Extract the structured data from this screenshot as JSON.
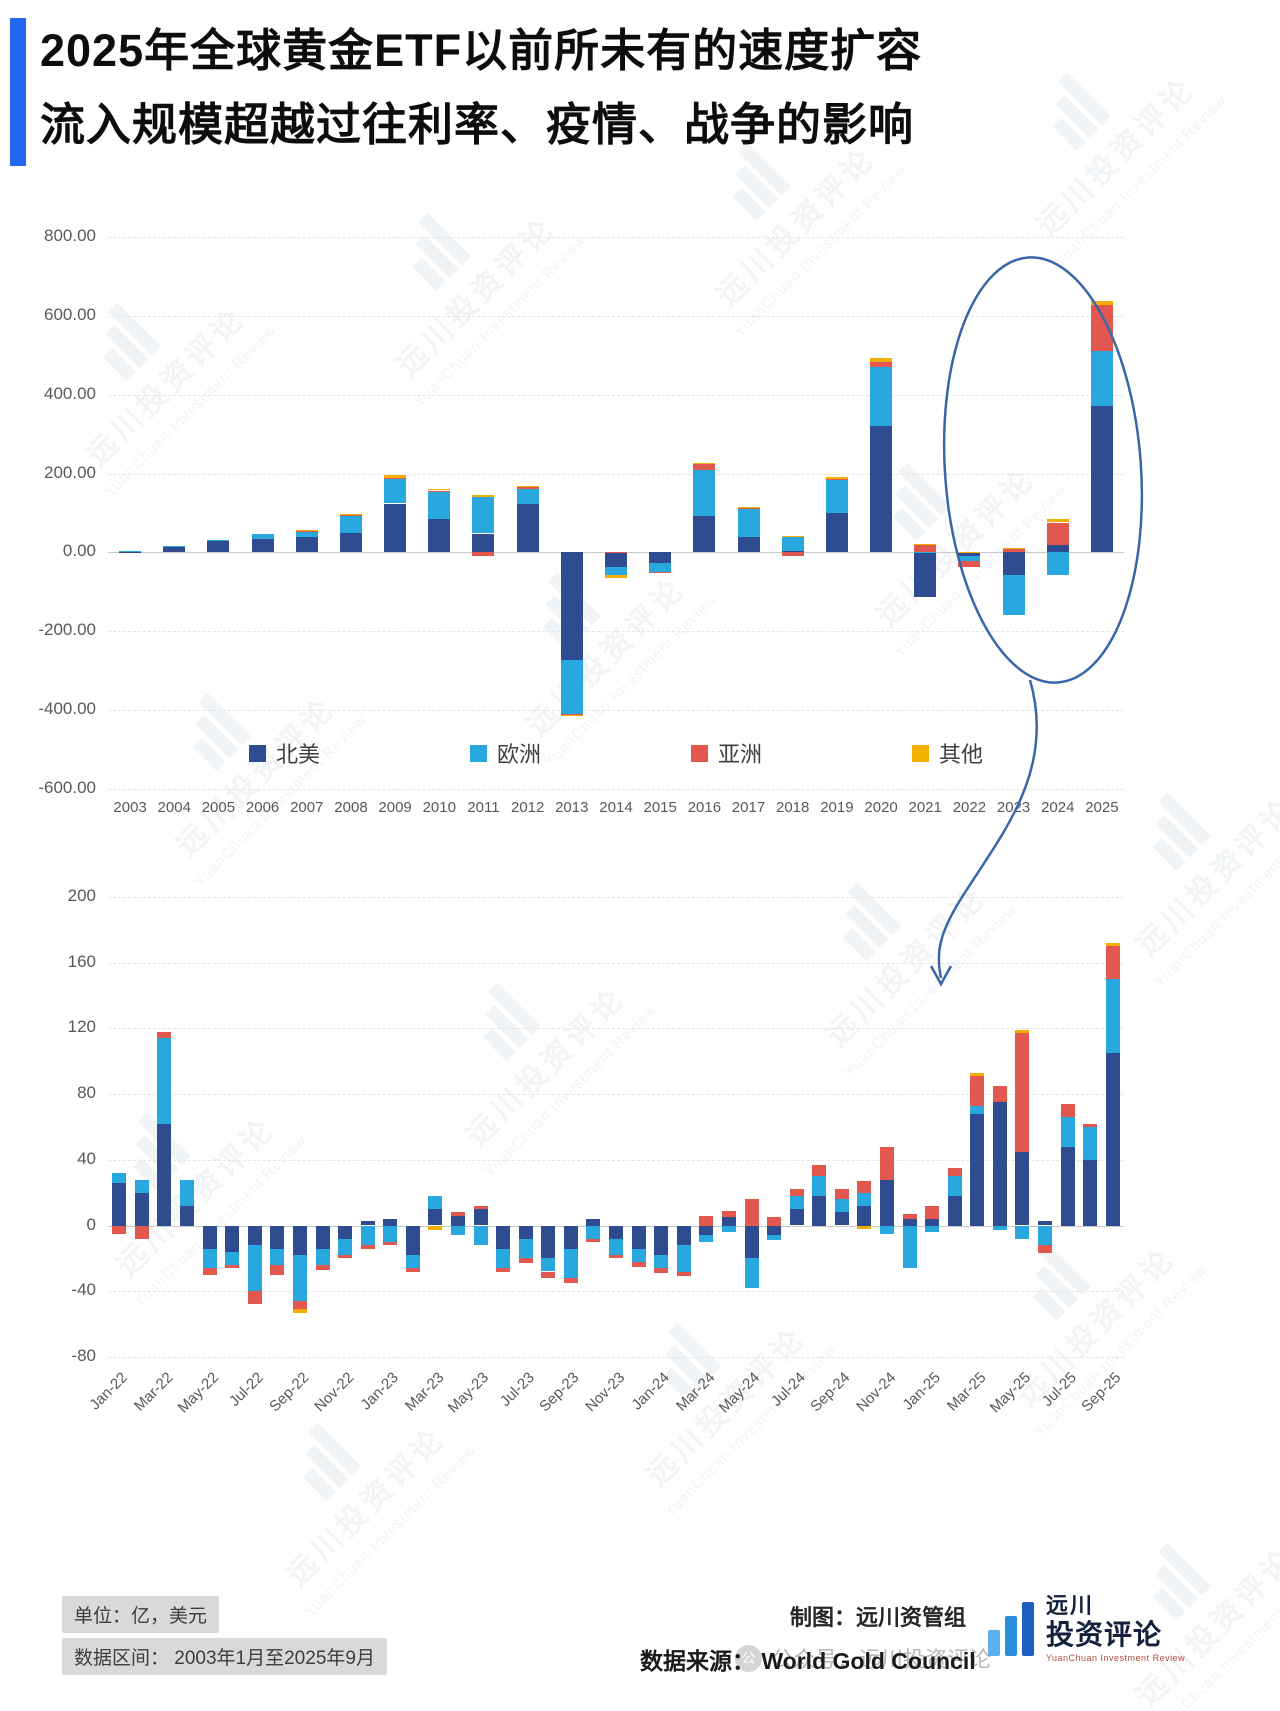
{
  "title": {
    "line1": "2025年全球黄金ETF以前所未有的速度扩容",
    "line2": "流入规模超越过往利率、疫情、战争的影响"
  },
  "legend": [
    {
      "label": "北美",
      "color": "#2E4C8F"
    },
    {
      "label": "欧洲",
      "color": "#29A8E0"
    },
    {
      "label": "亚洲",
      "color": "#E2574E"
    },
    {
      "label": "其他",
      "color": "#F2AF00"
    }
  ],
  "watermark": {
    "cn": "远川投资评论",
    "en": "YuanChuan Investment Review"
  },
  "footer": {
    "unit_label": "单位：亿，美元",
    "range_label": "数据区间： 2003年1月至2025年9月",
    "credit_label": "制图：远川资管组",
    "source_label": "数据来源： World Gold Council",
    "wechat_label": "公众号：远川投资评论",
    "wechat_icon_glyph": "公",
    "logo_cn1": "远川",
    "logo_cn2": "投资评论",
    "logo_en": "YuanChuan Investment Review"
  },
  "chart_data": [
    {
      "type": "bar",
      "stacked": true,
      "title": "",
      "xlabel": "",
      "ylabel": "",
      "ylim": [
        -600,
        800
      ],
      "yticks": [
        800,
        600,
        400,
        200,
        0,
        -200,
        -400,
        -600
      ],
      "ytick_decimals": true,
      "xtick_every": 1,
      "rotate_xticks": false,
      "bar_ratio": 0.5,
      "grid": true,
      "legend_position": "bottom-inside",
      "categories": [
        "2003",
        "2004",
        "2005",
        "2006",
        "2007",
        "2008",
        "2009",
        "2010",
        "2011",
        "2012",
        "2013",
        "2014",
        "2015",
        "2016",
        "2017",
        "2018",
        "2019",
        "2020",
        "2021",
        "2022",
        "2023",
        "2024",
        "2025"
      ],
      "series": [
        {
          "name": "北美",
          "values": [
            2,
            14,
            28,
            34,
            40,
            50,
            124,
            85,
            48,
            122,
            -272,
            -38,
            -26,
            92,
            38,
            3,
            100,
            320,
            -112,
            -10,
            -58,
            18,
            372
          ]
        },
        {
          "name": "欧洲",
          "values": [
            3,
            2,
            3,
            12,
            12,
            44,
            62,
            70,
            92,
            40,
            -138,
            -20,
            -24,
            118,
            72,
            38,
            84,
            150,
            2,
            -12,
            -102,
            -58,
            138
          ]
        },
        {
          "name": "亚洲",
          "values": [
            0,
            0,
            0,
            0,
            3,
            2,
            3,
            2,
            -8,
            3,
            -3,
            2,
            -2,
            15,
            2,
            -8,
            3,
            12,
            18,
            -14,
            10,
            58,
            118
          ]
        },
        {
          "name": "其他",
          "values": [
            0,
            0,
            0,
            0,
            2,
            2,
            8,
            3,
            5,
            4,
            -2,
            -6,
            0,
            3,
            3,
            2,
            4,
            10,
            2,
            2,
            2,
            8,
            10
          ]
        }
      ]
    },
    {
      "type": "bar",
      "stacked": true,
      "title": "",
      "xlabel": "",
      "ylabel": "",
      "ylim": [
        -80,
        200
      ],
      "yticks": [
        200,
        160,
        120,
        80,
        40,
        0,
        -40,
        -80
      ],
      "ytick_decimals": false,
      "xtick_every": 2,
      "rotate_xticks": true,
      "bar_ratio": 0.62,
      "grid": true,
      "categories": [
        "Jan-22",
        "Feb-22",
        "Mar-22",
        "Apr-22",
        "May-22",
        "Jun-22",
        "Jul-22",
        "Aug-22",
        "Sep-22",
        "Oct-22",
        "Nov-22",
        "Dec-22",
        "Jan-23",
        "Feb-23",
        "Mar-23",
        "Apr-23",
        "May-23",
        "Jun-23",
        "Jul-23",
        "Aug-23",
        "Sep-23",
        "Oct-23",
        "Nov-23",
        "Dec-23",
        "Jan-24",
        "Feb-24",
        "Mar-24",
        "Apr-24",
        "May-24",
        "Jun-24",
        "Jul-24",
        "Aug-24",
        "Sep-24",
        "Oct-24",
        "Nov-24",
        "Dec-24",
        "Jan-25",
        "Feb-25",
        "Mar-25",
        "Apr-25",
        "May-25",
        "Jun-25",
        "Jul-25",
        "Aug-25",
        "Sep-25"
      ],
      "series": [
        {
          "name": "北美",
          "values": [
            26,
            20,
            62,
            12,
            -14,
            -16,
            -12,
            -14,
            -18,
            -14,
            -8,
            3,
            4,
            -18,
            10,
            6,
            10,
            -14,
            -8,
            -20,
            -14,
            4,
            -8,
            -14,
            -18,
            -12,
            -6,
            5,
            -20,
            -6,
            10,
            18,
            8,
            12,
            28,
            4,
            4,
            18,
            68,
            75,
            45,
            3,
            48,
            40,
            105
          ]
        },
        {
          "name": "欧洲",
          "values": [
            6,
            8,
            52,
            16,
            -12,
            -8,
            -28,
            -10,
            -28,
            -10,
            -10,
            -12,
            -10,
            -8,
            8,
            -6,
            -12,
            -12,
            -12,
            -8,
            -18,
            -8,
            -10,
            -8,
            -8,
            -16,
            -4,
            -4,
            -18,
            -3,
            8,
            12,
            8,
            8,
            -5,
            -26,
            -4,
            12,
            5,
            -3,
            -8,
            -12,
            18,
            20,
            45
          ]
        },
        {
          "name": "亚洲",
          "values": [
            -5,
            -8,
            4,
            0,
            -4,
            -2,
            -8,
            -6,
            -5,
            -3,
            -2,
            -2,
            -2,
            -2,
            0,
            2,
            2,
            -2,
            -3,
            -4,
            -3,
            -2,
            -2,
            -3,
            -3,
            -3,
            6,
            4,
            16,
            5,
            4,
            7,
            6,
            7,
            20,
            3,
            8,
            5,
            18,
            10,
            72,
            -5,
            8,
            2,
            20
          ]
        },
        {
          "name": "其他",
          "values": [
            0,
            0,
            0,
            0,
            0,
            0,
            0,
            0,
            -2,
            0,
            0,
            0,
            0,
            0,
            -3,
            0,
            0,
            0,
            0,
            0,
            0,
            0,
            0,
            0,
            0,
            0,
            0,
            0,
            0,
            0,
            0,
            0,
            0,
            -2,
            0,
            0,
            0,
            0,
            2,
            0,
            2,
            0,
            0,
            0,
            2
          ]
        }
      ]
    }
  ]
}
